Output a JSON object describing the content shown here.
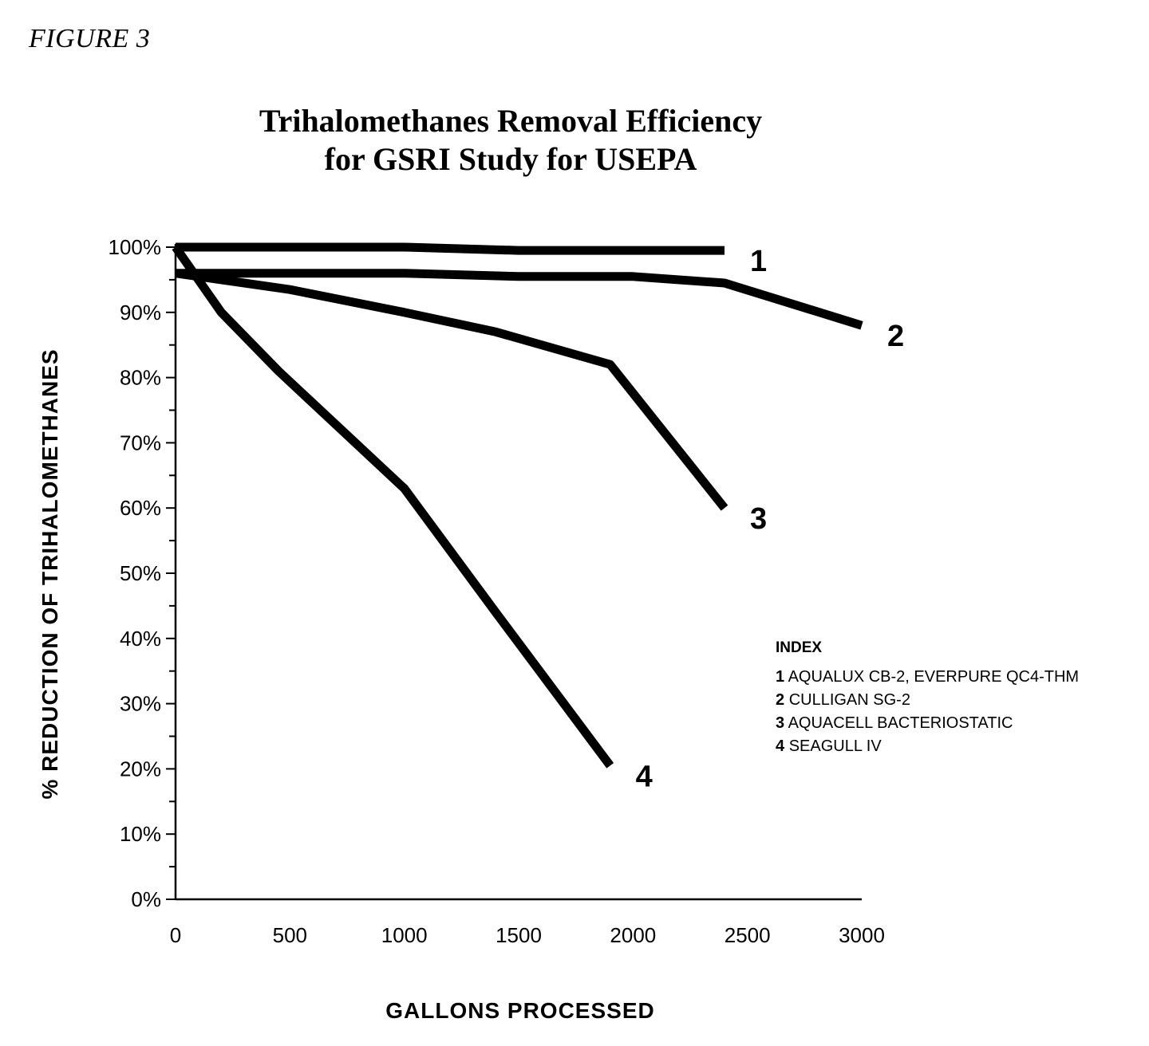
{
  "figure_label": "FIGURE 3",
  "chart_data": {
    "type": "line",
    "title_line1": "Trihalomethanes Removal Efficiency",
    "title_line2": "for GSRI Study for USEPA",
    "xlabel": "GALLONS PROCESSED",
    "ylabel": "% REDUCTION OF TRIHALOMETHANES",
    "xlim": [
      0,
      3000
    ],
    "ylim": [
      0,
      100
    ],
    "x_ticks": [
      0,
      500,
      1000,
      1500,
      2000,
      2500,
      3000
    ],
    "x_tick_labels": [
      "0",
      "500",
      "1000",
      "1500",
      "2000",
      "2500",
      "3000"
    ],
    "y_ticks": [
      0,
      10,
      20,
      30,
      40,
      50,
      60,
      70,
      80,
      90,
      100
    ],
    "y_tick_labels": [
      "0%",
      "10%",
      "20%",
      "30%",
      "40%",
      "50%",
      "60%",
      "70%",
      "80%",
      "90%",
      "100%"
    ],
    "grid": false,
    "series": [
      {
        "name": "1",
        "x": [
          0,
          500,
          1000,
          1500,
          2000,
          2400
        ],
        "y": [
          100,
          100,
          100,
          99.5,
          99.5,
          99.5
        ]
      },
      {
        "name": "2",
        "x": [
          0,
          500,
          1000,
          1500,
          2000,
          2400,
          3000
        ],
        "y": [
          96,
          96,
          96,
          95.5,
          95.5,
          94.5,
          88
        ]
      },
      {
        "name": "3",
        "x": [
          0,
          500,
          1000,
          1400,
          1900,
          2400
        ],
        "y": [
          96,
          93.5,
          90,
          87,
          82,
          60
        ]
      },
      {
        "name": "4",
        "x": [
          0,
          200,
          450,
          1000,
          1400,
          1900
        ],
        "y": [
          100,
          90,
          81,
          63,
          44,
          20.5
        ]
      }
    ],
    "legend": {
      "title": "INDEX",
      "placement": "right",
      "items": [
        {
          "num": "1",
          "label": "AQUALUX CB-2, EVERPURE QC4-THM"
        },
        {
          "num": "2",
          "label": "CULLIGAN SG-2"
        },
        {
          "num": "3",
          "label": "AQUACELL BACTERIOSTATIC"
        },
        {
          "num": "4",
          "label": "SEAGULL IV"
        }
      ]
    }
  }
}
